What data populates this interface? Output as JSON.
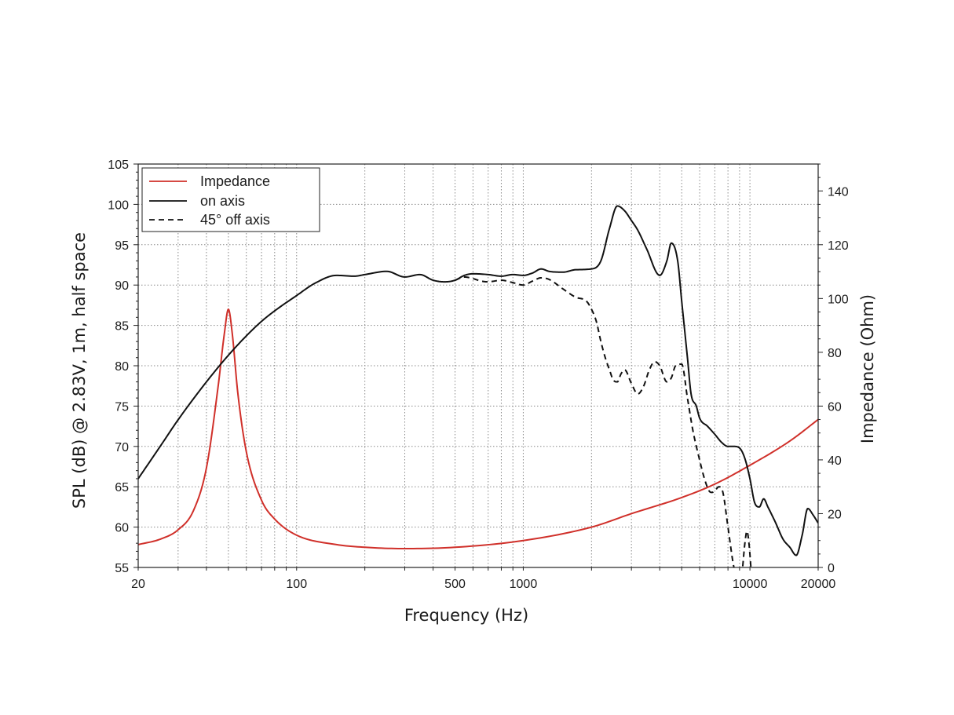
{
  "chart_data": {
    "type": "line",
    "x_scale": "log",
    "xlabel": "Frequency (Hz)",
    "ylabel": "SPL (dB) @ 2.83V, 1m, half space",
    "y2label": "Impedance (Ohm)",
    "xlim": [
      20,
      20000
    ],
    "ylim": [
      55,
      105
    ],
    "y2lim": [
      0,
      150
    ],
    "x_ticks": [
      20,
      100,
      500,
      1000,
      10000,
      20000
    ],
    "y_ticks": [
      55,
      60,
      65,
      70,
      75,
      80,
      85,
      90,
      95,
      100,
      105
    ],
    "y2_ticks": [
      0,
      20,
      40,
      60,
      80,
      100,
      120,
      140
    ],
    "grid": true,
    "legend_position": "top-left",
    "series": [
      {
        "name": "Impedance",
        "axis": "right",
        "color": "#d0302a",
        "style": "solid",
        "x": [
          20,
          25,
          30,
          35,
          40,
          45,
          48,
          50,
          52,
          55,
          60,
          70,
          80,
          100,
          150,
          200,
          300,
          500,
          1000,
          2000,
          3000,
          5000,
          7000,
          10000,
          15000,
          20000
        ],
        "y": [
          8.5,
          10.5,
          14,
          21,
          37,
          67,
          87,
          96,
          87,
          65,
          43,
          25,
          18,
          12,
          8.5,
          7.5,
          7,
          7.5,
          10,
          15,
          20,
          26,
          31,
          38,
          47,
          55
        ]
      },
      {
        "name": "on axis",
        "axis": "left",
        "color": "#111111",
        "style": "solid",
        "x": [
          20,
          25,
          30,
          40,
          50,
          60,
          70,
          80,
          100,
          120,
          150,
          180,
          200,
          250,
          300,
          350,
          400,
          450,
          500,
          550,
          600,
          700,
          800,
          900,
          1000,
          1100,
          1200,
          1300,
          1500,
          1700,
          2000,
          2200,
          2400,
          2600,
          2800,
          3000,
          3200,
          3500,
          4000,
          4300,
          4500,
          4800,
          5000,
          5300,
          5500,
          5800,
          6000,
          6500,
          7000,
          7500,
          8000,
          8500,
          9000,
          9500,
          10000,
          10500,
          11000,
          11500,
          12000,
          12500,
          13000,
          14000,
          15000,
          16000,
          17000,
          18000,
          19000,
          20000
        ],
        "y": [
          66,
          70,
          73.3,
          78,
          81.3,
          83.7,
          85.5,
          86.8,
          88.7,
          90.2,
          91.2,
          91.1,
          91.3,
          91.7,
          91,
          91.3,
          90.6,
          90.4,
          90.6,
          91.2,
          91.4,
          91.3,
          91.1,
          91.3,
          91.2,
          91.5,
          92,
          91.7,
          91.6,
          91.9,
          92,
          93,
          97,
          99.8,
          99.2,
          98,
          96.8,
          94.5,
          91.2,
          93,
          95.2,
          93,
          88,
          81,
          76.5,
          75,
          73.5,
          72.5,
          71.5,
          70.5,
          70,
          70,
          69.8,
          68.5,
          66,
          63,
          62.5,
          63.5,
          62.5,
          61.5,
          60.5,
          58.5,
          57.5,
          56.5,
          59,
          62.3,
          61.5,
          60.5
        ]
      },
      {
        "name": "45° off axis",
        "axis": "left",
        "color": "#111111",
        "style": "dashed",
        "x": [
          500,
          550,
          600,
          650,
          700,
          800,
          900,
          1000,
          1100,
          1200,
          1300,
          1500,
          1700,
          1900,
          2000,
          2100,
          2200,
          2300,
          2400,
          2500,
          2600,
          2700,
          2800,
          3000,
          3200,
          3400,
          3600,
          3800,
          4000,
          4300,
          4500,
          4700,
          5000,
          5300,
          5600,
          6000,
          6300,
          6600,
          6800,
          7000,
          7300,
          7600,
          8000,
          8500,
          9000,
          9200,
          9500,
          9700,
          9900,
          10100
        ],
        "y": [
          90.6,
          91,
          90.8,
          90.5,
          90.4,
          90.6,
          90.3,
          90,
          90.5,
          90.9,
          90.7,
          89.5,
          88.5,
          88,
          87,
          85.5,
          83,
          81,
          79.5,
          78.2,
          78,
          79,
          79.5,
          77.8,
          76.5,
          77.5,
          79.5,
          80.5,
          80,
          78,
          78.5,
          80,
          80.2,
          76,
          72,
          68.3,
          66,
          64.5,
          64.3,
          64.5,
          65,
          64.3,
          60,
          55,
          53,
          54,
          58,
          59.5,
          58,
          55
        ]
      }
    ]
  }
}
